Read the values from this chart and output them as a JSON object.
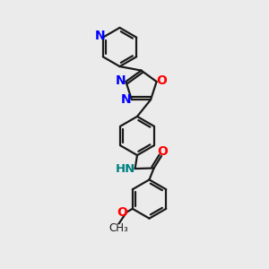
{
  "bg_color": "#ebebeb",
  "bond_color": "#1a1a1a",
  "N_color": "#0000ff",
  "O_color": "#ff0000",
  "NH_color": "#008080",
  "line_width": 1.6,
  "font_size": 9.5,
  "figsize": [
    3.0,
    3.0
  ],
  "dpi": 100,
  "xlim": [
    0,
    10
  ],
  "ylim": [
    0,
    10
  ]
}
